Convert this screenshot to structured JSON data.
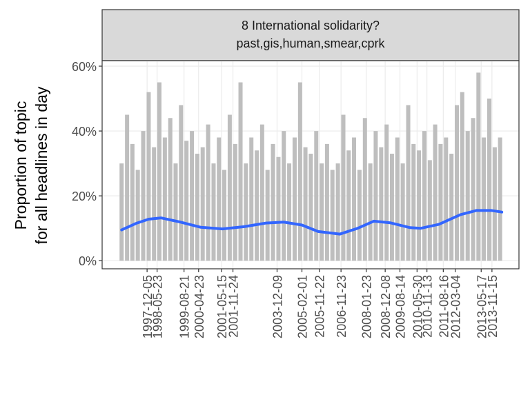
{
  "chart_data": {
    "type": "line",
    "strip_title": "8 International solidarity?",
    "strip_subtitle": "past,gis,human,smear,cprk",
    "ylabel": [
      "Proportion of topic",
      "for all headlines in day"
    ],
    "xlim": [
      "1995-11-07",
      "2015-02-14"
    ],
    "xticks": [
      "1997-12-05",
      "1998-05-23",
      "1999-08-21",
      "2000-04-23",
      "2001-05-15",
      "2001-11-24",
      "2003-12-09",
      "2005-02-01",
      "2005-11-22",
      "2006-11-23",
      "2008-01-23",
      "2008-12-08",
      "2009-08-14",
      "2010-05-30",
      "2010-11-13",
      "2011-08-16",
      "2012-03-04",
      "2013-05-17",
      "2013-11-15"
    ],
    "ylim": [
      -2.5,
      61.7
    ],
    "yticks": [
      {
        "value": 0,
        "label": "0%"
      },
      {
        "value": 20,
        "label": "20%"
      },
      {
        "value": 40,
        "label": "40%"
      },
      {
        "value": 60,
        "label": "60%"
      }
    ],
    "grid": true,
    "series": [
      {
        "style": "spikes",
        "color": "#bebebe",
        "x": [
          "1996-10-01",
          "1997-01-01",
          "1997-04-01",
          "1997-07-01",
          "1997-10-01",
          "1998-01-01",
          "1998-04-01",
          "1998-07-01",
          "1998-10-01",
          "1999-01-01",
          "1999-04-01",
          "1999-07-01",
          "1999-10-01",
          "2000-01-01",
          "2000-04-01",
          "2000-07-01",
          "2000-10-01",
          "2001-01-01",
          "2001-04-01",
          "2001-07-01",
          "2001-10-01",
          "2002-01-01",
          "2002-04-01",
          "2002-07-01",
          "2002-10-01",
          "2003-01-01",
          "2003-04-01",
          "2003-07-01",
          "2003-10-01",
          "2004-01-01",
          "2004-04-01",
          "2004-07-01",
          "2004-10-01",
          "2005-01-01",
          "2005-04-01",
          "2005-07-01",
          "2005-10-01",
          "2006-01-01",
          "2006-04-01",
          "2006-07-01",
          "2006-10-01",
          "2007-01-01",
          "2007-04-01",
          "2007-07-01",
          "2007-10-01",
          "2008-01-01",
          "2008-04-01",
          "2008-07-01",
          "2008-10-01",
          "2009-01-01",
          "2009-04-01",
          "2009-07-01",
          "2009-10-01",
          "2010-01-01",
          "2010-04-01",
          "2010-07-01",
          "2010-10-01",
          "2011-01-01",
          "2011-04-01",
          "2011-07-01",
          "2011-10-01",
          "2012-01-01",
          "2012-04-01",
          "2012-07-01",
          "2012-10-01",
          "2013-01-01",
          "2013-04-01",
          "2013-07-01",
          "2013-10-01",
          "2014-01-01",
          "2014-04-01"
        ],
        "values": [
          30,
          45,
          36,
          28,
          40,
          52,
          35,
          55,
          38,
          44,
          30,
          48,
          37,
          40,
          33,
          35,
          42,
          30,
          38,
          28,
          45,
          36,
          55,
          30,
          38,
          34,
          42,
          28,
          36,
          32,
          40,
          30,
          38,
          55,
          35,
          33,
          40,
          30,
          36,
          28,
          30,
          45,
          34,
          38,
          28,
          44,
          30,
          40,
          35,
          42,
          33,
          38,
          30,
          48,
          36,
          34,
          40,
          31,
          42,
          36,
          38,
          33,
          48,
          52,
          40,
          44,
          58,
          38,
          50,
          35,
          38
        ]
      },
      {
        "style": "smooth",
        "color": "#3366ff",
        "x": [
          "1996-10-01",
          "1997-06-01",
          "1998-01-01",
          "1998-08-01",
          "1999-06-01",
          "2000-06-01",
          "2001-06-01",
          "2002-06-01",
          "2003-06-01",
          "2004-04-01",
          "2005-02-01",
          "2005-11-01",
          "2006-11-01",
          "2007-09-01",
          "2008-06-01",
          "2009-03-01",
          "2010-02-01",
          "2010-08-01",
          "2011-06-01",
          "2012-06-01",
          "2013-03-01",
          "2013-11-01",
          "2014-05-01"
        ],
        "values": [
          9.5,
          11.5,
          12.8,
          13.2,
          12,
          10.3,
          9.8,
          10.5,
          11.6,
          11.9,
          11,
          9,
          8.2,
          10,
          12.2,
          11.7,
          10.2,
          10,
          11.2,
          14.2,
          15.5,
          15.5,
          15
        ]
      }
    ]
  }
}
